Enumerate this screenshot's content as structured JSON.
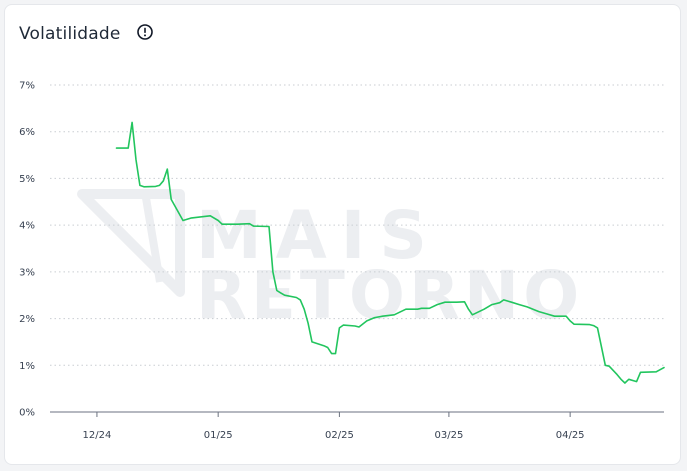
{
  "header": {
    "title": "Volatilidade",
    "info_icon": "info-circle-icon"
  },
  "watermark": {
    "line1": "MAIS",
    "line2": "RETORNO",
    "logo_icon": "mais-retorno-logo-icon"
  },
  "colors": {
    "line": "#22c55e",
    "grid": "#c9cdd2",
    "axis": "#6b7280",
    "text": "#374151",
    "watermark": "#eceef1"
  },
  "chart_data": {
    "type": "line",
    "title": "Volatilidade",
    "xlabel": "",
    "ylabel": "",
    "ylim": [
      0,
      7
    ],
    "y_ticks": [
      0,
      1,
      2,
      3,
      4,
      5,
      6,
      7
    ],
    "y_tick_labels": [
      "0%",
      "1%",
      "2%",
      "3%",
      "4%",
      "5%",
      "6%",
      "7%"
    ],
    "y_unit": "%",
    "xlim": [
      "2024-11-19",
      "2025-04-25"
    ],
    "x_ticks": [
      "2024-12-01",
      "2025-01-01",
      "2025-02-01",
      "2025-03-01",
      "2025-04-01"
    ],
    "x_tick_labels": [
      "12/24",
      "01/25",
      "02/25",
      "03/25",
      "04/25"
    ],
    "grid": "horizontal-dotted",
    "series": [
      {
        "points": [
          [
            "2024-12-06",
            5.65
          ],
          [
            "2024-12-09",
            5.65
          ],
          [
            "2024-12-10",
            6.2
          ],
          [
            "2024-12-11",
            5.4
          ],
          [
            "2024-12-12",
            4.85
          ],
          [
            "2024-12-13",
            4.82
          ],
          [
            "2024-12-16",
            4.83
          ],
          [
            "2024-12-17",
            4.85
          ],
          [
            "2024-12-18",
            4.95
          ],
          [
            "2024-12-19",
            5.2
          ],
          [
            "2024-12-20",
            4.55
          ],
          [
            "2024-12-23",
            4.1
          ],
          [
            "2024-12-25",
            4.15
          ],
          [
            "2024-12-28",
            4.18
          ],
          [
            "2024-12-30",
            4.2
          ],
          [
            "2025-01-01",
            4.1
          ],
          [
            "2025-01-02",
            4.02
          ],
          [
            "2025-01-06",
            4.02
          ],
          [
            "2025-01-09",
            4.03
          ],
          [
            "2025-01-10",
            3.98
          ],
          [
            "2025-01-14",
            3.97
          ],
          [
            "2025-01-15",
            3.0
          ],
          [
            "2025-01-16",
            2.6
          ],
          [
            "2025-01-17",
            2.55
          ],
          [
            "2025-01-18",
            2.5
          ],
          [
            "2025-01-21",
            2.45
          ],
          [
            "2025-01-22",
            2.4
          ],
          [
            "2025-01-23",
            2.2
          ],
          [
            "2025-01-24",
            1.9
          ],
          [
            "2025-01-25",
            1.5
          ],
          [
            "2025-01-28",
            1.42
          ],
          [
            "2025-01-29",
            1.38
          ],
          [
            "2025-01-30",
            1.25
          ],
          [
            "2025-01-31",
            1.25
          ],
          [
            "2025-02-01",
            1.8
          ],
          [
            "2025-02-02",
            1.86
          ],
          [
            "2025-02-05",
            1.84
          ],
          [
            "2025-02-06",
            1.82
          ],
          [
            "2025-02-08",
            1.95
          ],
          [
            "2025-02-10",
            2.02
          ],
          [
            "2025-02-12",
            2.05
          ],
          [
            "2025-02-15",
            2.08
          ],
          [
            "2025-02-18",
            2.2
          ],
          [
            "2025-02-21",
            2.2
          ],
          [
            "2025-02-22",
            2.22
          ],
          [
            "2025-02-24",
            2.22
          ],
          [
            "2025-02-26",
            2.3
          ],
          [
            "2025-02-28",
            2.35
          ],
          [
            "2025-03-03",
            2.35
          ],
          [
            "2025-03-05",
            2.36
          ],
          [
            "2025-03-06",
            2.2
          ],
          [
            "2025-03-07",
            2.08
          ],
          [
            "2025-03-10",
            2.2
          ],
          [
            "2025-03-12",
            2.3
          ],
          [
            "2025-03-14",
            2.34
          ],
          [
            "2025-03-15",
            2.4
          ],
          [
            "2025-03-17",
            2.35
          ],
          [
            "2025-03-19",
            2.3
          ],
          [
            "2025-03-21",
            2.25
          ],
          [
            "2025-03-24",
            2.15
          ],
          [
            "2025-03-26",
            2.1
          ],
          [
            "2025-03-28",
            2.05
          ],
          [
            "2025-03-31",
            2.05
          ],
          [
            "2025-04-01",
            1.95
          ],
          [
            "2025-04-02",
            1.88
          ],
          [
            "2025-04-06",
            1.87
          ],
          [
            "2025-04-07",
            1.85
          ],
          [
            "2025-04-08",
            1.8
          ],
          [
            "2025-04-09",
            1.4
          ],
          [
            "2025-04-10",
            1.0
          ],
          [
            "2025-04-11",
            0.98
          ],
          [
            "2025-04-13",
            0.8
          ],
          [
            "2025-04-14",
            0.7
          ],
          [
            "2025-04-15",
            0.62
          ],
          [
            "2025-04-16",
            0.7
          ],
          [
            "2025-04-18",
            0.65
          ],
          [
            "2025-04-19",
            0.85
          ],
          [
            "2025-04-23",
            0.86
          ],
          [
            "2025-04-25",
            0.95
          ]
        ]
      }
    ]
  }
}
